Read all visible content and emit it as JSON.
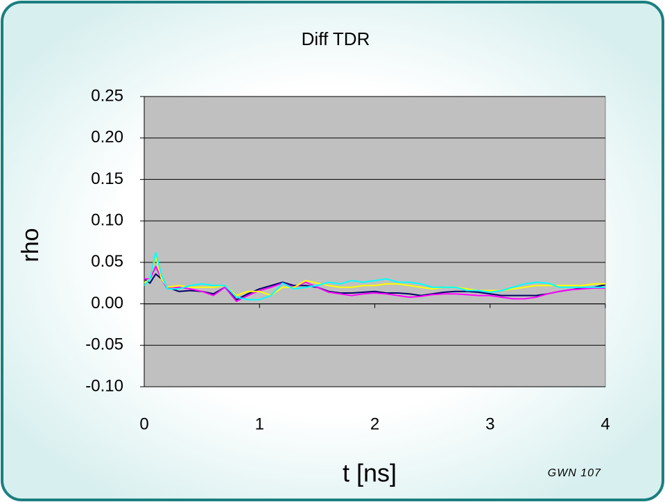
{
  "chart_data": {
    "type": "line",
    "title": "Diff TDR",
    "xlabel": "t [ns]",
    "ylabel": "rho",
    "annotation": "GWN 107",
    "x": [
      0,
      0.05,
      0.1,
      0.15,
      0.2,
      0.3,
      0.4,
      0.5,
      0.6,
      0.7,
      0.8,
      0.9,
      1.0,
      1.1,
      1.2,
      1.3,
      1.4,
      1.5,
      1.6,
      1.7,
      1.8,
      1.9,
      2.0,
      2.1,
      2.2,
      2.3,
      2.4,
      2.5,
      2.6,
      2.7,
      2.8,
      2.9,
      3.0,
      3.1,
      3.2,
      3.3,
      3.4,
      3.5,
      3.6,
      3.7,
      3.8,
      3.9,
      4.0
    ],
    "series": [
      {
        "color": "#000066",
        "values": [
          0.03,
          0.025,
          0.036,
          0.03,
          0.02,
          0.015,
          0.016,
          0.015,
          0.012,
          0.02,
          0.005,
          0.012,
          0.018,
          0.022,
          0.026,
          0.022,
          0.022,
          0.02,
          0.015,
          0.013,
          0.013,
          0.014,
          0.015,
          0.013,
          0.013,
          0.012,
          0.01,
          0.012,
          0.014,
          0.015,
          0.015,
          0.014,
          0.012,
          0.01,
          0.01,
          0.01,
          0.01,
          0.012,
          0.015,
          0.017,
          0.019,
          0.02,
          0.023
        ]
      },
      {
        "color": "#ff00ff",
        "values": [
          0.03,
          0.03,
          0.045,
          0.03,
          0.018,
          0.02,
          0.018,
          0.015,
          0.01,
          0.02,
          0.003,
          0.01,
          0.016,
          0.02,
          0.025,
          0.02,
          0.026,
          0.02,
          0.014,
          0.012,
          0.01,
          0.012,
          0.013,
          0.012,
          0.01,
          0.008,
          0.009,
          0.011,
          0.012,
          0.012,
          0.011,
          0.01,
          0.01,
          0.008,
          0.006,
          0.006,
          0.008,
          0.012,
          0.015,
          0.017,
          0.018,
          0.019,
          0.019
        ]
      },
      {
        "color": "#ffff00",
        "values": [
          0.025,
          0.03,
          0.058,
          0.03,
          0.02,
          0.022,
          0.02,
          0.02,
          0.02,
          0.022,
          0.01,
          0.015,
          0.015,
          0.01,
          0.02,
          0.02,
          0.028,
          0.025,
          0.022,
          0.02,
          0.02,
          0.022,
          0.022,
          0.024,
          0.024,
          0.022,
          0.02,
          0.018,
          0.02,
          0.02,
          0.018,
          0.016,
          0.016,
          0.016,
          0.018,
          0.02,
          0.022,
          0.022,
          0.022,
          0.022,
          0.022,
          0.024,
          0.024
        ]
      },
      {
        "color": "#00ffff",
        "values": [
          0.022,
          0.03,
          0.062,
          0.035,
          0.018,
          0.018,
          0.022,
          0.024,
          0.022,
          0.022,
          0.008,
          0.005,
          0.005,
          0.01,
          0.025,
          0.018,
          0.02,
          0.022,
          0.026,
          0.024,
          0.028,
          0.026,
          0.028,
          0.03,
          0.026,
          0.026,
          0.024,
          0.02,
          0.02,
          0.02,
          0.016,
          0.016,
          0.014,
          0.016,
          0.02,
          0.024,
          0.026,
          0.025,
          0.02,
          0.02,
          0.02,
          0.02,
          0.02
        ]
      }
    ],
    "xlim": [
      0,
      4
    ],
    "xticks": [
      0,
      1,
      2,
      3,
      4
    ],
    "ylim": [
      -0.1,
      0.25
    ],
    "yticks": [
      0.25,
      {
        "value": 0.2,
        "label": "0.20"
      },
      0.15,
      {
        "value": 0.1,
        "label": "0.10"
      },
      0.05,
      {
        "value": 0,
        "label": "0.00"
      },
      -0.05,
      {
        "value": -0.1,
        "label": "-0.10"
      }
    ],
    "grid": true,
    "plot_background": "#c0c0c0"
  }
}
